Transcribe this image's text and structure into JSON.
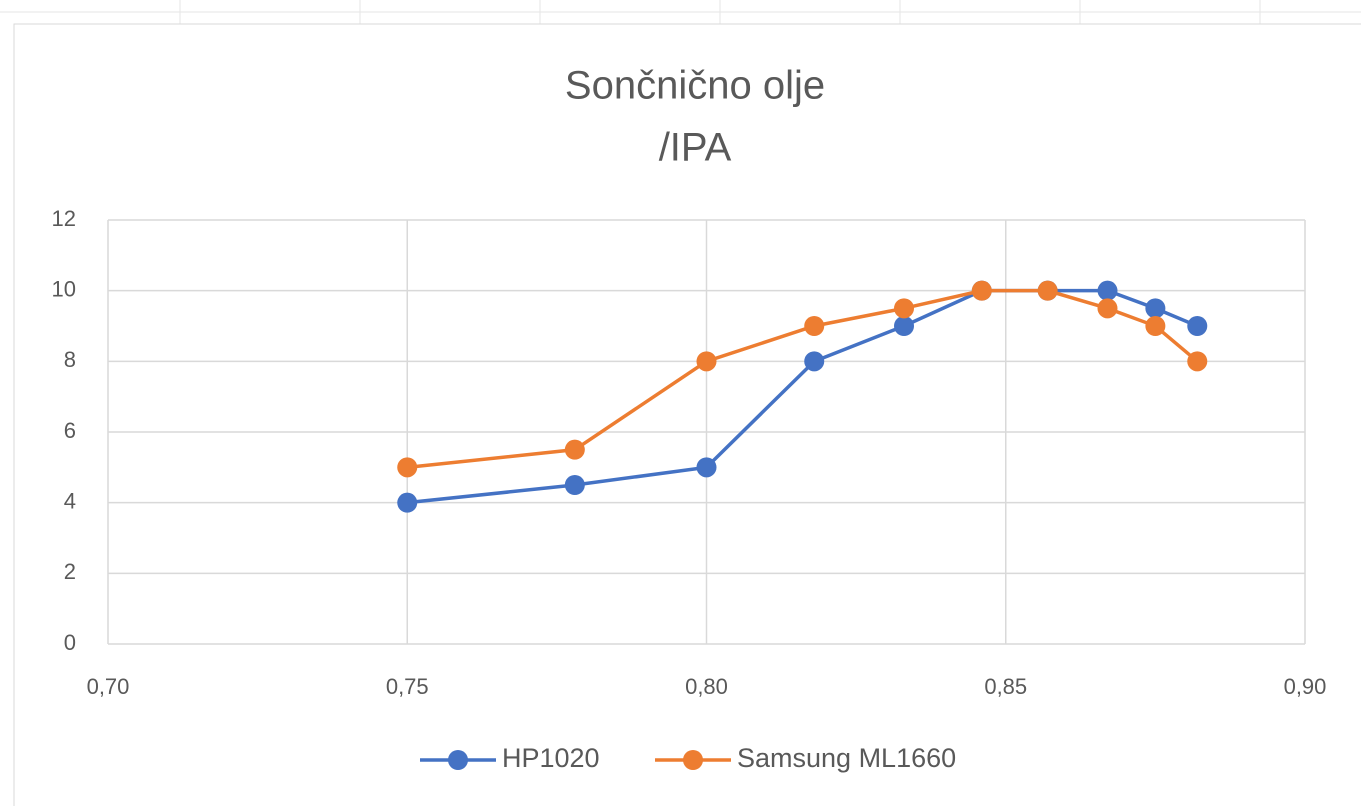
{
  "chart_data": {
    "type": "line",
    "title": [
      "Sončnično olje",
      "/IPA"
    ],
    "x": [
      0.75,
      0.778,
      0.8,
      0.818,
      0.833,
      0.846,
      0.857,
      0.867,
      0.875,
      0.882
    ],
    "series": [
      {
        "name": "HP1020",
        "color": "#4472c4",
        "values": [
          4,
          4.5,
          5,
          8,
          9,
          10,
          10,
          10,
          9.5,
          9
        ]
      },
      {
        "name": "Samsung ML1660",
        "color": "#ed7d31",
        "values": [
          5,
          5.5,
          8,
          9,
          9.5,
          10,
          10,
          9.5,
          9,
          8
        ]
      }
    ],
    "xlim": [
      0.7,
      0.9
    ],
    "xticks": [
      {
        "value": 0.7,
        "label": "0,70"
      },
      {
        "value": 0.75,
        "label": "0,75"
      },
      {
        "value": 0.8,
        "label": "0,80"
      },
      {
        "value": 0.85,
        "label": "0,85"
      },
      {
        "value": 0.9,
        "label": "0,90"
      }
    ],
    "ylim": [
      0,
      12
    ],
    "yticks": [
      0,
      2,
      4,
      6,
      8,
      10,
      12
    ],
    "grid": true,
    "legend": "bottom"
  }
}
